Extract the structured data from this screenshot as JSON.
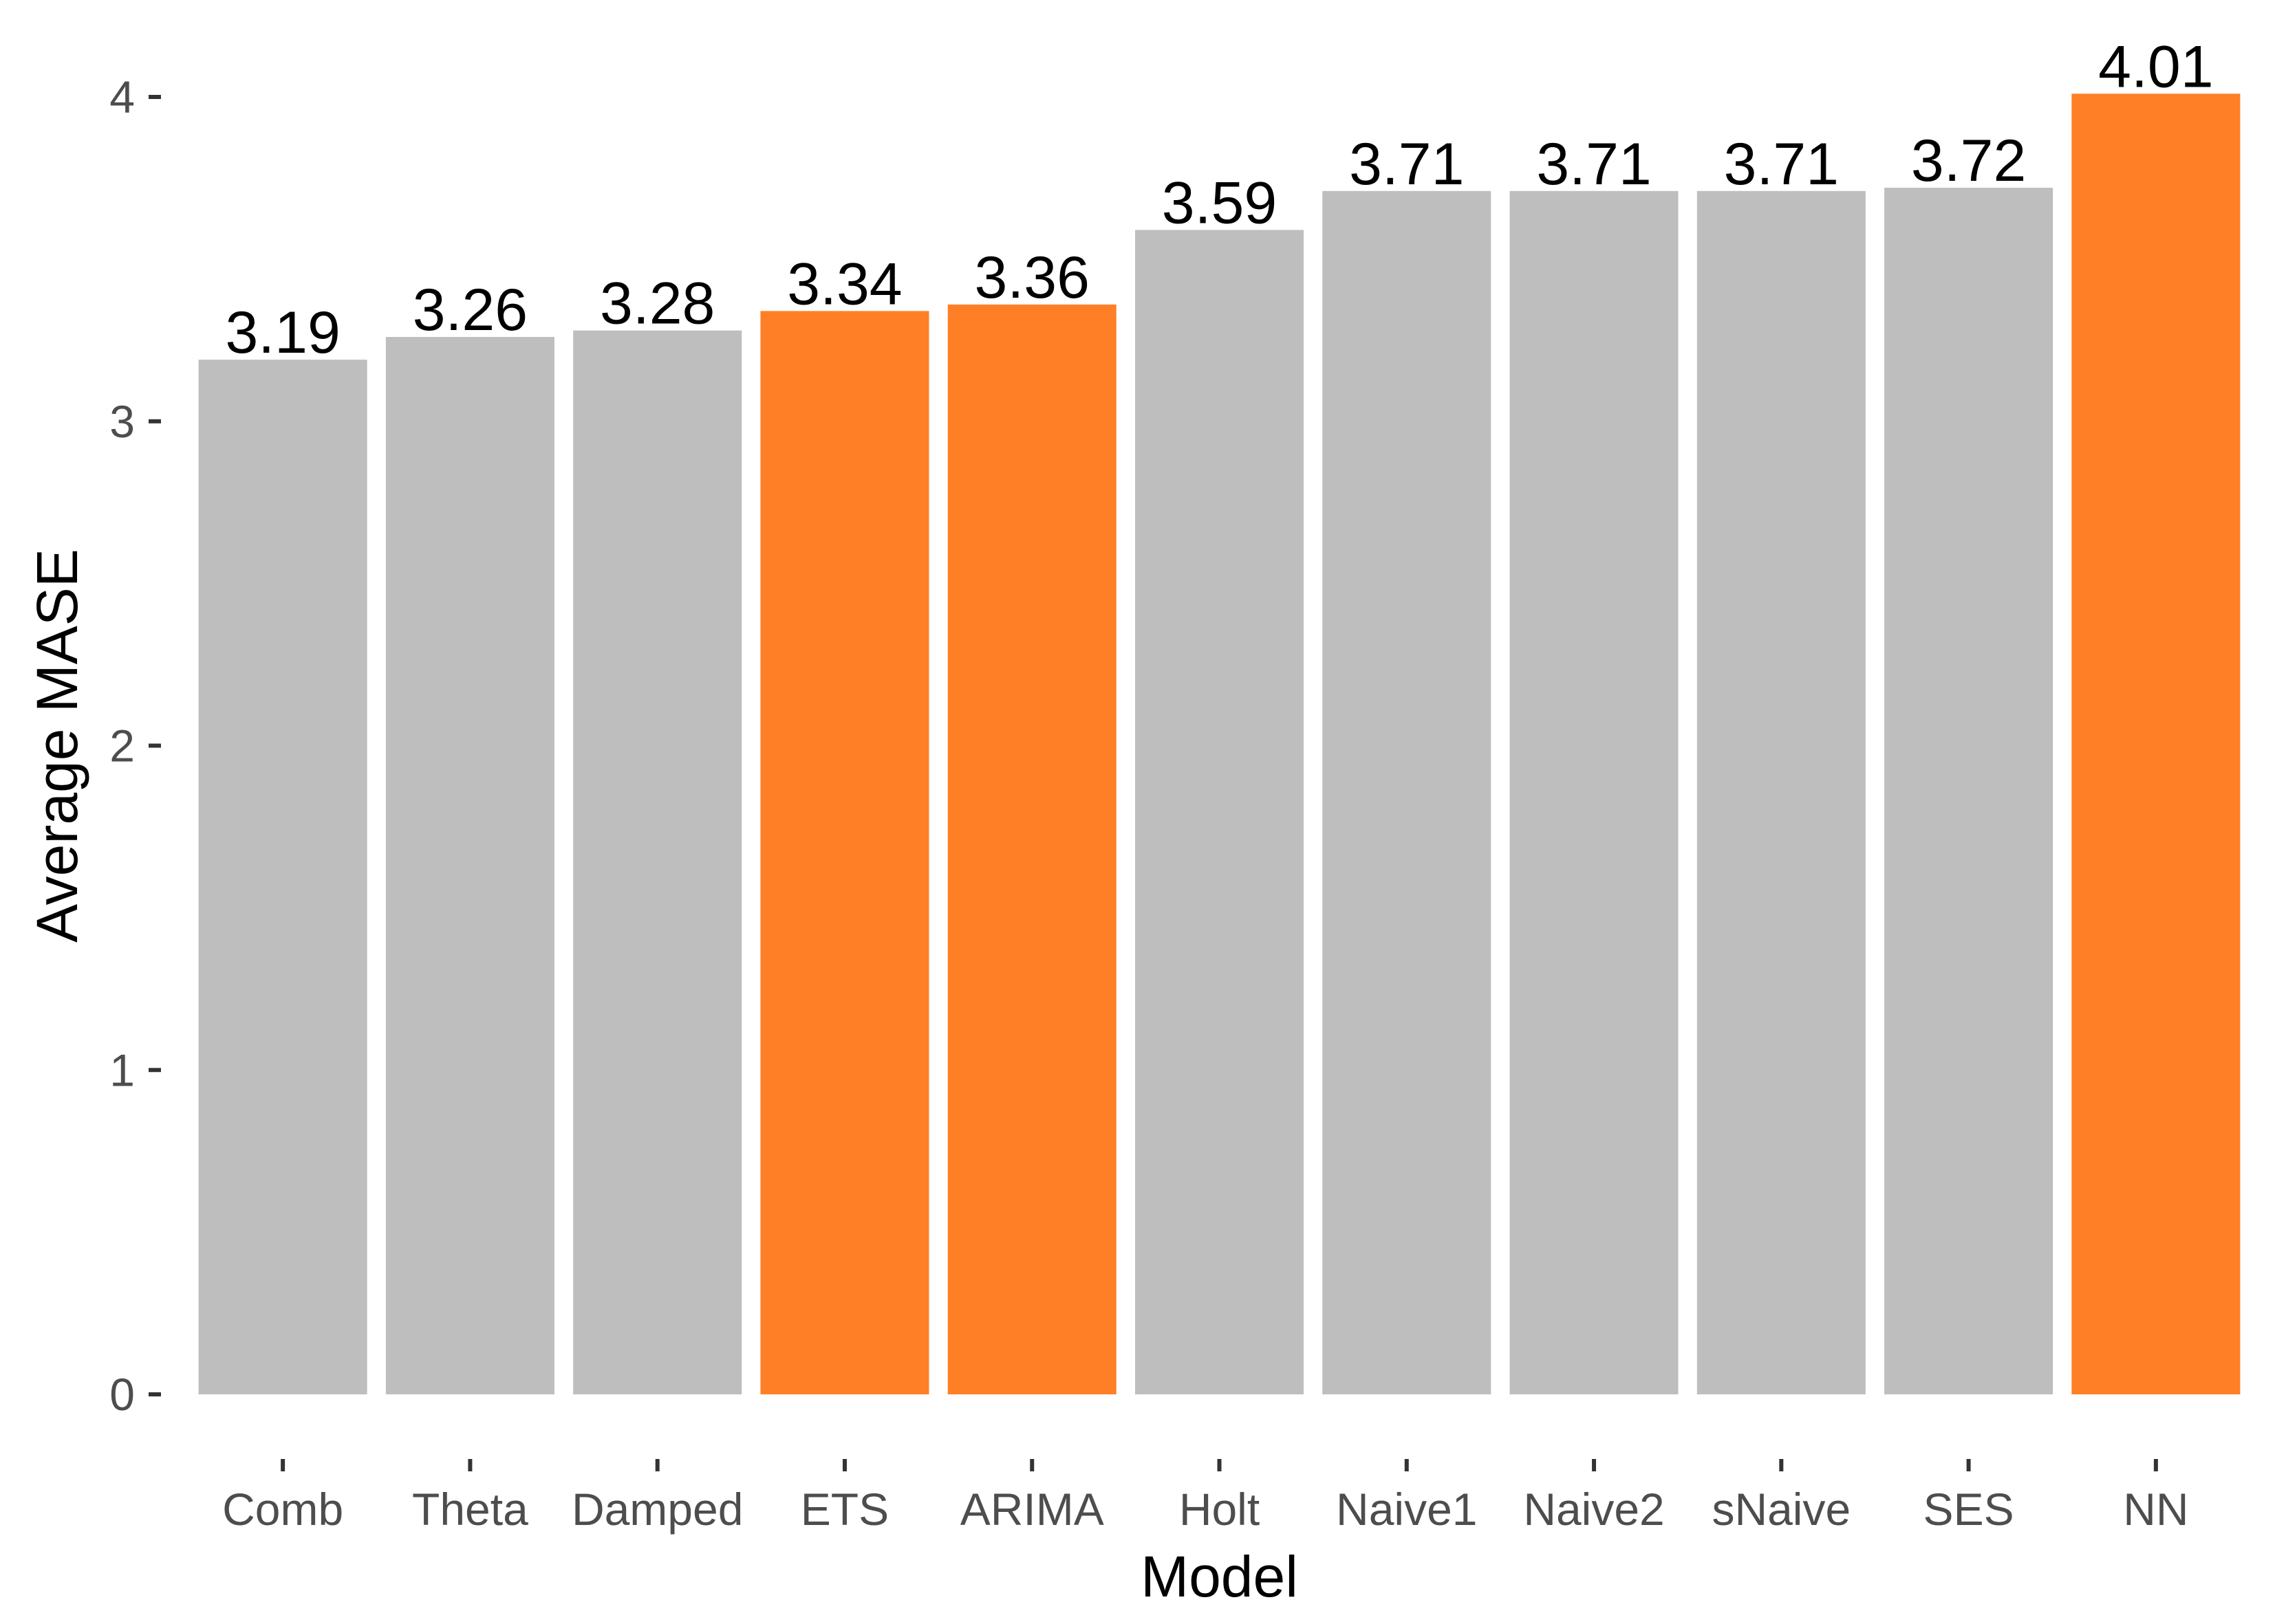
{
  "chart_data": {
    "type": "bar",
    "title": "",
    "xlabel": "Model",
    "ylabel": "Average MASE",
    "categories": [
      "Comb",
      "Theta",
      "Damped",
      "ETS",
      "ARIMA",
      "Holt",
      "Naive1",
      "Naive2",
      "sNaive",
      "SES",
      "NN"
    ],
    "values": [
      3.19,
      3.26,
      3.28,
      3.34,
      3.36,
      3.59,
      3.71,
      3.71,
      3.71,
      3.72,
      4.01
    ],
    "value_labels": [
      "3.19",
      "3.26",
      "3.28",
      "3.34",
      "3.36",
      "3.59",
      "3.71",
      "3.71",
      "3.71",
      "3.72",
      "4.01"
    ],
    "highlighted": [
      false,
      false,
      false,
      true,
      true,
      false,
      false,
      false,
      false,
      false,
      true
    ],
    "yticks": [
      "0",
      "1",
      "2",
      "3",
      "4"
    ],
    "ylim": [
      0,
      4.01
    ],
    "grid": false,
    "legend": "none",
    "colors": {
      "default": "#bebebe",
      "highlight": "#ff7f27"
    }
  }
}
